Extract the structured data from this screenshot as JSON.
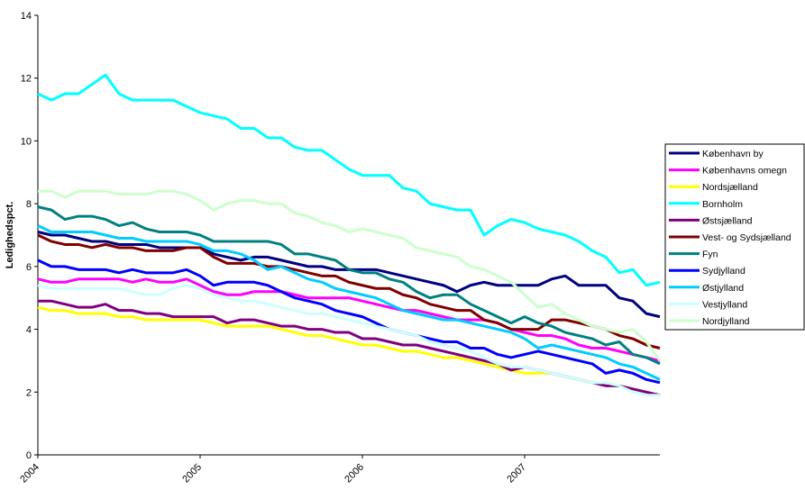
{
  "chart_data": {
    "type": "line",
    "y_label": "Ledighedspct.",
    "categories": [
      "2004",
      null,
      null,
      null,
      null,
      null,
      null,
      null,
      null,
      null,
      null,
      null,
      "2005",
      null,
      null,
      null,
      null,
      null,
      null,
      null,
      null,
      null,
      null,
      null,
      "2006",
      null,
      null,
      null,
      null,
      null,
      null,
      null,
      null,
      null,
      null,
      null,
      "2007",
      null,
      null,
      null,
      null,
      null,
      null,
      null,
      null,
      null,
      null
    ],
    "ylim": [
      0,
      14
    ],
    "yticks": [
      0,
      2,
      4,
      6,
      8,
      10,
      12,
      14
    ],
    "grid": false,
    "legend": "right",
    "series": [
      {
        "name": "København by",
        "color": "#000080",
        "values": [
          7.1,
          7.0,
          7.0,
          6.9,
          6.8,
          6.8,
          6.7,
          6.7,
          6.7,
          6.6,
          6.6,
          6.6,
          6.6,
          6.4,
          6.3,
          6.2,
          6.3,
          6.3,
          6.2,
          6.1,
          6.0,
          6.0,
          5.9,
          5.9,
          5.9,
          5.9,
          5.8,
          5.7,
          5.6,
          5.5,
          5.4,
          5.2,
          5.4,
          5.5,
          5.4,
          5.4,
          5.4,
          5.4,
          5.6,
          5.7,
          5.4,
          5.4,
          5.4,
          5.0,
          4.9,
          4.5,
          4.4
        ]
      },
      {
        "name": "Københavns omegn",
        "color": "#ff00ff",
        "values": [
          5.6,
          5.5,
          5.5,
          5.6,
          5.6,
          5.6,
          5.6,
          5.5,
          5.6,
          5.5,
          5.5,
          5.6,
          5.4,
          5.2,
          5.1,
          5.1,
          5.2,
          5.2,
          5.2,
          5.1,
          5.0,
          5.0,
          5.0,
          5.0,
          4.9,
          4.8,
          4.7,
          4.6,
          4.6,
          4.5,
          4.4,
          4.3,
          4.3,
          4.3,
          4.2,
          4.0,
          3.9,
          3.8,
          3.8,
          3.7,
          3.5,
          3.4,
          3.4,
          3.3,
          3.2,
          3.1,
          3.0
        ]
      },
      {
        "name": "Nordsjælland",
        "color": "#ffff00",
        "values": [
          4.7,
          4.6,
          4.6,
          4.5,
          4.5,
          4.5,
          4.4,
          4.4,
          4.3,
          4.3,
          4.3,
          4.3,
          4.3,
          4.2,
          4.1,
          4.1,
          4.1,
          4.1,
          4.0,
          3.9,
          3.8,
          3.8,
          3.7,
          3.6,
          3.5,
          3.5,
          3.4,
          3.3,
          3.3,
          3.2,
          3.1,
          3.1,
          3.0,
          2.9,
          2.8,
          2.7,
          2.6,
          2.6,
          2.6,
          2.5,
          2.4,
          2.3,
          2.3,
          2.2,
          2.1,
          2.0,
          1.9
        ]
      },
      {
        "name": "Bornholm",
        "color": "#00ffff",
        "values": [
          11.5,
          11.3,
          11.5,
          11.5,
          11.8,
          12.1,
          11.5,
          11.3,
          11.3,
          11.3,
          11.3,
          11.1,
          10.9,
          10.8,
          10.7,
          10.4,
          10.4,
          10.1,
          10.1,
          9.8,
          9.7,
          9.7,
          9.4,
          9.1,
          8.9,
          8.9,
          8.9,
          8.5,
          8.4,
          8.0,
          7.9,
          7.8,
          7.8,
          7.0,
          7.3,
          7.5,
          7.4,
          7.2,
          7.1,
          7.0,
          6.8,
          6.5,
          6.3,
          5.8,
          5.9,
          5.4,
          5.5
        ]
      },
      {
        "name": "Østsjælland",
        "color": "#800080",
        "values": [
          4.9,
          4.9,
          4.8,
          4.7,
          4.7,
          4.8,
          4.6,
          4.6,
          4.5,
          4.5,
          4.4,
          4.4,
          4.4,
          4.4,
          4.2,
          4.3,
          4.3,
          4.2,
          4.1,
          4.1,
          4.0,
          4.0,
          3.9,
          3.9,
          3.7,
          3.7,
          3.6,
          3.5,
          3.5,
          3.4,
          3.3,
          3.2,
          3.1,
          3.0,
          2.9,
          2.7,
          2.8,
          2.7,
          2.6,
          2.5,
          2.4,
          2.3,
          2.2,
          2.2,
          2.1,
          2.0,
          1.9
        ]
      },
      {
        "name": "Vest- og Sydsjælland",
        "color": "#800000",
        "values": [
          7.0,
          6.8,
          6.7,
          6.7,
          6.6,
          6.7,
          6.6,
          6.6,
          6.5,
          6.5,
          6.5,
          6.6,
          6.6,
          6.3,
          6.1,
          6.1,
          6.1,
          6.0,
          6.0,
          5.9,
          5.8,
          5.7,
          5.7,
          5.5,
          5.4,
          5.3,
          5.3,
          5.1,
          5.0,
          4.8,
          4.7,
          4.6,
          4.6,
          4.3,
          4.2,
          4.0,
          4.0,
          4.0,
          4.3,
          4.3,
          4.2,
          4.1,
          4.0,
          3.8,
          3.7,
          3.5,
          3.4
        ]
      },
      {
        "name": "Fyn",
        "color": "#008080",
        "values": [
          7.9,
          7.8,
          7.5,
          7.6,
          7.6,
          7.5,
          7.3,
          7.4,
          7.2,
          7.1,
          7.1,
          7.1,
          7.0,
          6.8,
          6.8,
          6.8,
          6.8,
          6.8,
          6.7,
          6.4,
          6.4,
          6.3,
          6.2,
          5.9,
          5.8,
          5.8,
          5.6,
          5.5,
          5.2,
          5.0,
          5.1,
          5.1,
          4.8,
          4.6,
          4.4,
          4.2,
          4.4,
          4.2,
          4.1,
          3.9,
          3.8,
          3.7,
          3.5,
          3.6,
          3.2,
          3.1,
          2.9
        ]
      },
      {
        "name": "Sydjylland",
        "color": "#0000ff",
        "values": [
          6.2,
          6.0,
          6.0,
          5.9,
          5.9,
          5.9,
          5.8,
          5.9,
          5.8,
          5.8,
          5.8,
          5.9,
          5.7,
          5.4,
          5.5,
          5.5,
          5.5,
          5.4,
          5.2,
          5.0,
          4.9,
          4.8,
          4.6,
          4.5,
          4.4,
          4.2,
          4.0,
          3.9,
          3.8,
          3.7,
          3.6,
          3.6,
          3.4,
          3.4,
          3.2,
          3.1,
          3.2,
          3.3,
          3.2,
          3.1,
          3.0,
          2.9,
          2.6,
          2.7,
          2.6,
          2.4,
          2.3
        ]
      },
      {
        "name": "Østjylland",
        "color": "#00ccff",
        "values": [
          7.3,
          7.1,
          7.1,
          7.1,
          7.1,
          7.0,
          6.9,
          6.9,
          6.8,
          6.8,
          6.8,
          6.8,
          6.7,
          6.5,
          6.5,
          6.4,
          6.2,
          5.9,
          6.0,
          5.8,
          5.6,
          5.5,
          5.3,
          5.2,
          5.1,
          5.0,
          4.8,
          4.6,
          4.5,
          4.4,
          4.3,
          4.3,
          4.2,
          4.1,
          4.0,
          3.9,
          3.7,
          3.4,
          3.5,
          3.4,
          3.3,
          3.2,
          3.1,
          2.9,
          2.8,
          2.6,
          2.4
        ]
      },
      {
        "name": "Vestjylland",
        "color": "#ccffff",
        "values": [
          5.4,
          5.3,
          5.3,
          5.3,
          5.3,
          5.3,
          5.3,
          5.2,
          5.1,
          5.1,
          5.3,
          5.4,
          5.3,
          5.1,
          5.0,
          4.9,
          4.9,
          4.8,
          4.7,
          4.6,
          4.5,
          4.5,
          4.4,
          4.3,
          4.2,
          4.1,
          4.0,
          3.9,
          3.8,
          3.6,
          3.5,
          3.4,
          3.3,
          3.1,
          2.9,
          2.8,
          2.8,
          2.7,
          2.6,
          2.5,
          2.4,
          2.3,
          2.3,
          2.2,
          2.0,
          1.9,
          1.9
        ]
      },
      {
        "name": "Nordjylland",
        "color": "#ccffcc",
        "values": [
          8.4,
          8.4,
          8.2,
          8.4,
          8.4,
          8.4,
          8.3,
          8.3,
          8.3,
          8.4,
          8.4,
          8.3,
          8.1,
          7.8,
          8.0,
          8.1,
          8.1,
          8.0,
          8.0,
          7.7,
          7.6,
          7.4,
          7.3,
          7.1,
          7.2,
          7.1,
          7.0,
          6.9,
          6.6,
          6.5,
          6.4,
          6.3,
          6.0,
          5.9,
          5.7,
          5.5,
          5.1,
          4.7,
          4.8,
          4.5,
          4.3,
          4.1,
          4.0,
          3.9,
          4.0,
          3.6,
          3.0
        ]
      }
    ]
  }
}
